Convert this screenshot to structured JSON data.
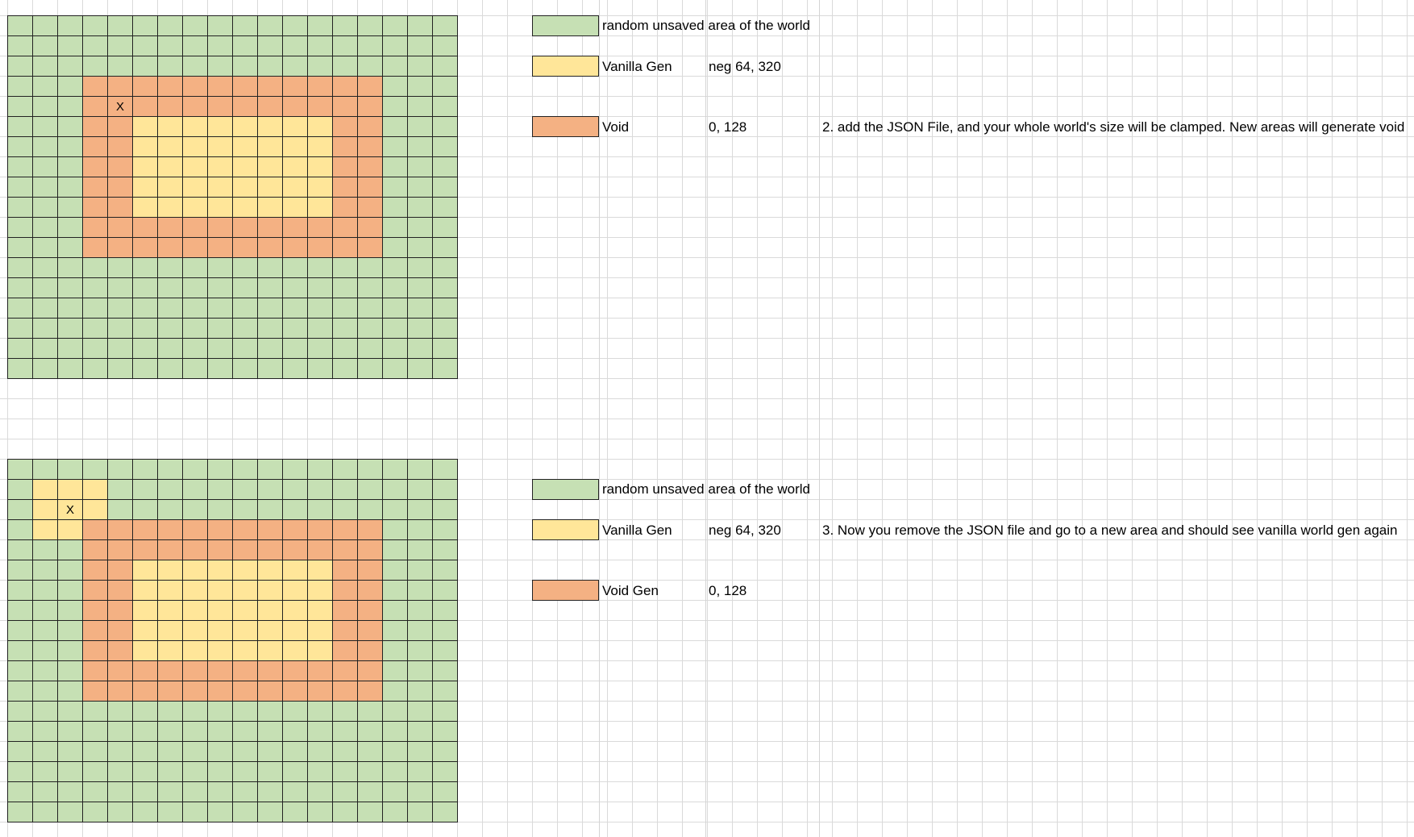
{
  "colors": {
    "unsaved": "#c6e0b4",
    "vanilla": "#ffe699",
    "void": "#f4b183"
  },
  "diagram1": {
    "marker": "X",
    "legend": [
      {
        "label": "random unsaved area of the world",
        "range": "",
        "color": "#c6e0b4"
      },
      {
        "label": "Vanilla Gen",
        "range": "neg 64, 320",
        "color": "#ffe699"
      },
      {
        "label": "Void",
        "range": "0, 128",
        "color": "#f4b183"
      }
    ],
    "note": "2. add the JSON File, and your whole world's size will be clamped. New areas will generate void"
  },
  "diagram2": {
    "marker": "X",
    "legend": [
      {
        "label": "random unsaved area of the world",
        "range": "",
        "color": "#c6e0b4"
      },
      {
        "label": "Vanilla Gen",
        "range": "neg 64, 320",
        "color": "#ffe699"
      },
      {
        "label": "Void Gen",
        "range": "0, 128",
        "color": "#f4b183"
      }
    ],
    "note": "3. Now you remove the JSON file and go to a new area and should see vanilla world gen again"
  }
}
